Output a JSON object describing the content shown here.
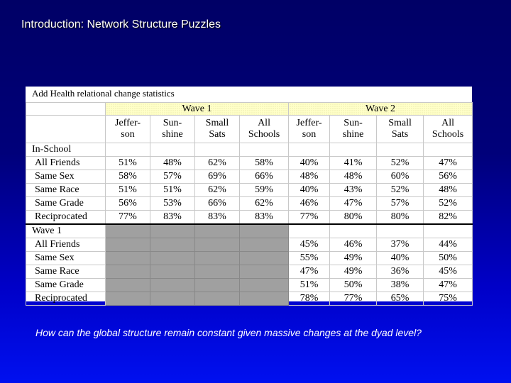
{
  "slide": {
    "title": "Introduction: Network Structure Puzzles",
    "footer_question": "How can the global structure remain constant given massive changes at the dyad level?"
  },
  "table": {
    "caption": "Add Health relational change statistics",
    "waves": [
      "Wave 1",
      "Wave 2"
    ],
    "columns": [
      [
        "Jeffer-",
        "son"
      ],
      [
        "Sun-",
        "shine"
      ],
      [
        "Small",
        "Sats"
      ],
      [
        "All",
        "Schools"
      ],
      [
        "Jeffer-",
        "son"
      ],
      [
        "Sun-",
        "shine"
      ],
      [
        "Small",
        "Sats"
      ],
      [
        "All",
        "Schools"
      ]
    ],
    "sections": [
      {
        "label": "In-School",
        "rows": [
          {
            "label": "All Friends",
            "values": [
              "51%",
              "48%",
              "62%",
              "58%",
              "40%",
              "41%",
              "52%",
              "47%"
            ]
          },
          {
            "label": "Same Sex",
            "values": [
              "58%",
              "57%",
              "69%",
              "66%",
              "48%",
              "48%",
              "60%",
              "56%"
            ]
          },
          {
            "label": "Same Race",
            "values": [
              "51%",
              "51%",
              "62%",
              "59%",
              "40%",
              "43%",
              "52%",
              "48%"
            ]
          },
          {
            "label": "Same Grade",
            "values": [
              "56%",
              "53%",
              "66%",
              "62%",
              "46%",
              "47%",
              "57%",
              "52%"
            ]
          },
          {
            "label": "Reciprocated",
            "values": [
              "77%",
              "83%",
              "83%",
              "83%",
              "77%",
              "80%",
              "80%",
              "82%"
            ]
          }
        ]
      },
      {
        "label": "Wave 1",
        "rows": [
          {
            "label": "All Friends",
            "values": [
              "",
              "",
              "",
              "",
              "45%",
              "46%",
              "37%",
              "44%"
            ]
          },
          {
            "label": "Same Sex",
            "values": [
              "",
              "",
              "",
              "",
              "55%",
              "49%",
              "40%",
              "50%"
            ]
          },
          {
            "label": "Same Race",
            "values": [
              "",
              "",
              "",
              "",
              "47%",
              "49%",
              "36%",
              "45%"
            ]
          },
          {
            "label": "Same Grade",
            "values": [
              "",
              "",
              "",
              "",
              "51%",
              "50%",
              "38%",
              "47%"
            ]
          },
          {
            "label": "Reciprocated",
            "values": [
              "",
              "",
              "",
              "",
              "78%",
              "77%",
              "65%",
              "75%"
            ]
          }
        ]
      }
    ]
  }
}
